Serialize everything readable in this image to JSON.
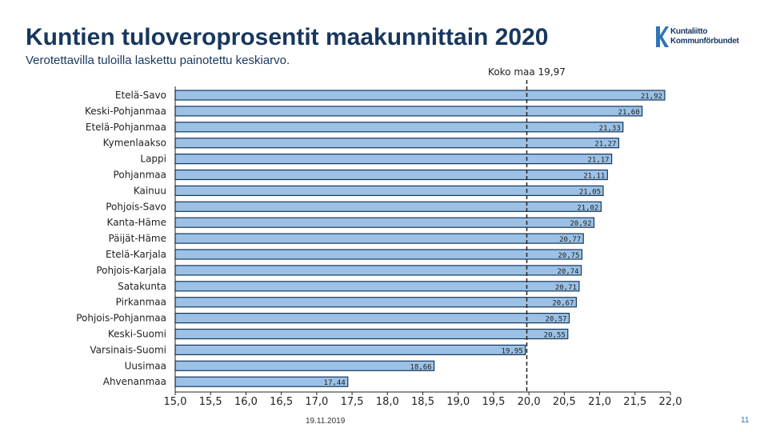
{
  "header": {
    "title": "Kuntien tuloveroprosentit maakunnittain 2020",
    "subtitle": "Verotettavilla tuloilla laskettu painotettu keskiarvo.",
    "logo_line1": "Kuntaliitto",
    "logo_line2": "Kommunförbundet"
  },
  "footer": {
    "date": "19.11.2019",
    "page_number": "11"
  },
  "colors": {
    "bar_fill": "#9bc2e6",
    "bar_border": "#17375e",
    "average_line": "#222222",
    "title": "#17375e",
    "logo_mark": "#2e75b6"
  },
  "chart_data": {
    "type": "bar",
    "orientation": "horizontal",
    "title": "Kuntien tuloveroprosentit maakunnittain 2020",
    "subtitle": "Verotettavilla tuloilla laskettu painotettu keskiarvo.",
    "categories": [
      "Etelä-Savo",
      "Keski-Pohjanmaa",
      "Etelä-Pohjanmaa",
      "Kymenlaakso",
      "Lappi",
      "Pohjanmaa",
      "Kainuu",
      "Pohjois-Savo",
      "Kanta-Häme",
      "Päijät-Häme",
      "Etelä-Karjala",
      "Pohjois-Karjala",
      "Satakunta",
      "Pirkanmaa",
      "Pohjois-Pohjanmaa",
      "Keski-Suomi",
      "Varsinais-Suomi",
      "Uusimaa",
      "Ahvenanmaa"
    ],
    "values": [
      21.92,
      21.6,
      21.33,
      21.27,
      21.17,
      21.11,
      21.05,
      21.02,
      20.92,
      20.77,
      20.75,
      20.74,
      20.71,
      20.67,
      20.57,
      20.55,
      19.95,
      18.66,
      17.44
    ],
    "value_labels": [
      "21,92",
      "21,60",
      "21,33",
      "21,27",
      "21,17",
      "21,11",
      "21,05",
      "21,02",
      "20,92",
      "20,77",
      "20,75",
      "20,74",
      "20,71",
      "20,67",
      "20,57",
      "20,55",
      "19,95",
      "18,66",
      "17,44"
    ],
    "xlim": [
      15.0,
      22.0
    ],
    "x_ticks": [
      15.0,
      15.5,
      16.0,
      16.5,
      17.0,
      17.5,
      18.0,
      18.5,
      19.0,
      19.5,
      20.0,
      20.5,
      21.0,
      21.5,
      22.0
    ],
    "x_tick_labels": [
      "15,0",
      "15,5",
      "16,0",
      "16,5",
      "17,0",
      "17,5",
      "18,0",
      "18,5",
      "19,0",
      "19,5",
      "20,0",
      "20,5",
      "21,0",
      "21,5",
      "22,0"
    ],
    "reference_line": {
      "value": 19.97,
      "label": "Koko maa 19,97"
    },
    "grid": false,
    "legend": "none"
  }
}
